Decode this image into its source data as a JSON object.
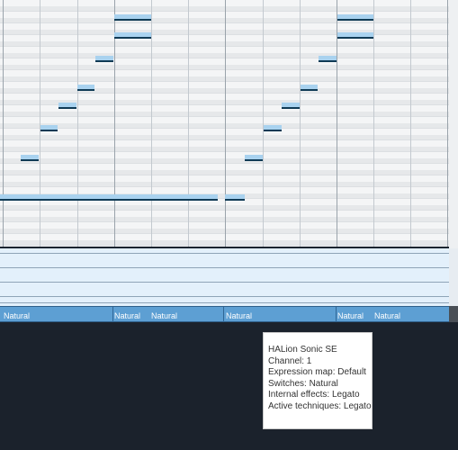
{
  "articulation_lane": {
    "labels": [
      "Natural",
      "Natural",
      "Natural",
      "Natural",
      "Natural",
      "Natural"
    ]
  },
  "tooltip": {
    "instrument": "HALion Sonic SE",
    "channel": "Channel: 1",
    "expression_map": "Expression map: Default",
    "switches": "Switches: Natural",
    "internal_effects": "Internal effects: Legato",
    "active_techniques": "Active techniques: Legato"
  },
  "colors": {
    "note_fill": "#a9d2ef",
    "note_outline": "#0f3a55",
    "articulation_lane": "#5d9fd3",
    "background": "#1b222c"
  }
}
